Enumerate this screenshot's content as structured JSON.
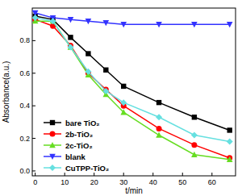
{
  "chart_data": {
    "type": "line",
    "x_label": "t/min",
    "y_label": "Absorbance(a.u.)",
    "x": [
      0,
      6,
      12,
      18,
      24,
      30,
      42,
      54,
      66
    ],
    "xlim": [
      -1,
      68
    ],
    "xticks": [
      0,
      10,
      20,
      30,
      40,
      50,
      60
    ],
    "ylim": [
      -0.03,
      1.0
    ],
    "yticks": [
      {
        "value": 0,
        "label": "0.0"
      },
      0.2,
      0.4,
      0.6,
      0.8
    ],
    "legend": "lower left",
    "series": [
      {
        "name": "bare TiO₂",
        "color": "#000000",
        "marker": "square",
        "values": [
          0.95,
          0.93,
          0.82,
          0.72,
          0.62,
          0.52,
          0.42,
          0.33,
          0.25
        ]
      },
      {
        "name": "2b-TiO₂",
        "color": "#ff0000",
        "marker": "circle",
        "values": [
          0.93,
          0.89,
          0.77,
          0.6,
          0.5,
          0.4,
          0.26,
          0.16,
          0.08
        ]
      },
      {
        "name": "2c-TiO₂",
        "color": "#66dd22",
        "marker": "triangle-up",
        "values": [
          0.92,
          0.92,
          0.76,
          0.59,
          0.47,
          0.36,
          0.22,
          0.1,
          0.07
        ]
      },
      {
        "name": "blank",
        "color": "#3333ff",
        "marker": "triangle-down",
        "values": [
          0.97,
          0.94,
          0.93,
          0.92,
          0.91,
          0.9,
          0.9,
          0.9,
          0.9
        ]
      },
      {
        "name": "CuTPP-TiO₂",
        "color": "#66e0e0",
        "marker": "diamond",
        "values": [
          0.94,
          0.92,
          0.76,
          0.61,
          0.49,
          0.42,
          0.33,
          0.22,
          0.18
        ]
      }
    ]
  }
}
